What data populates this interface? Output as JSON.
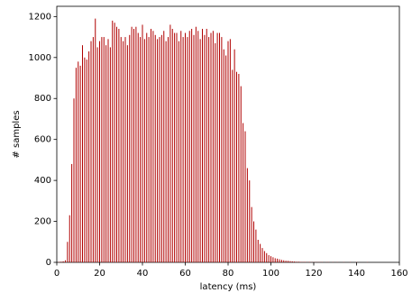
{
  "chart_data": {
    "type": "bar",
    "x_label": "latency (ms)",
    "y_label": "# samples",
    "color": "#b00000",
    "x": [
      1,
      2,
      3,
      4,
      5,
      6,
      7,
      8,
      9,
      10,
      11,
      12,
      13,
      14,
      15,
      16,
      17,
      18,
      19,
      20,
      21,
      22,
      23,
      24,
      25,
      26,
      27,
      28,
      29,
      30,
      31,
      32,
      33,
      34,
      35,
      36,
      37,
      38,
      39,
      40,
      41,
      42,
      43,
      44,
      45,
      46,
      47,
      48,
      49,
      50,
      51,
      52,
      53,
      54,
      55,
      56,
      57,
      58,
      59,
      60,
      61,
      62,
      63,
      64,
      65,
      66,
      67,
      68,
      69,
      70,
      71,
      72,
      73,
      74,
      75,
      76,
      77,
      78,
      79,
      80,
      81,
      82,
      83,
      84,
      85,
      86,
      87,
      88,
      89,
      90,
      91,
      92,
      93,
      94,
      95,
      96,
      97,
      98,
      99,
      100,
      101,
      102,
      103,
      104,
      105,
      106,
      107,
      108,
      109,
      110,
      111,
      112,
      113,
      114,
      115,
      116,
      117,
      118,
      119,
      120,
      121,
      122,
      123,
      124,
      125,
      126,
      127,
      128,
      129,
      130,
      131,
      132,
      133,
      134,
      135,
      136,
      137,
      138,
      139,
      140,
      141,
      142,
      143,
      144,
      145
    ],
    "values": [
      2,
      3,
      5,
      10,
      100,
      230,
      480,
      800,
      950,
      980,
      960,
      1060,
      1000,
      990,
      1030,
      1080,
      1100,
      1190,
      1050,
      1080,
      1100,
      1100,
      1060,
      1090,
      1050,
      1180,
      1170,
      1150,
      1140,
      1100,
      1080,
      1100,
      1060,
      1110,
      1150,
      1140,
      1150,
      1120,
      1100,
      1160,
      1090,
      1120,
      1100,
      1140,
      1130,
      1110,
      1090,
      1100,
      1110,
      1130,
      1080,
      1100,
      1160,
      1140,
      1120,
      1120,
      1080,
      1130,
      1100,
      1120,
      1100,
      1130,
      1140,
      1110,
      1150,
      1130,
      1090,
      1140,
      1110,
      1140,
      1100,
      1120,
      1130,
      1070,
      1120,
      1120,
      1100,
      1040,
      1010,
      1080,
      1090,
      940,
      1040,
      930,
      920,
      860,
      680,
      640,
      460,
      400,
      270,
      200,
      160,
      110,
      90,
      70,
      55,
      45,
      35,
      30,
      25,
      20,
      18,
      15,
      12,
      10,
      8,
      7,
      6,
      5,
      4,
      3,
      3,
      2,
      2,
      2,
      1,
      2,
      1,
      1,
      1,
      1,
      1,
      1,
      0,
      1,
      1,
      0,
      1,
      0,
      1,
      0,
      0,
      1,
      0,
      0,
      1,
      0,
      0,
      1,
      0,
      0,
      0,
      0,
      1
    ],
    "xlim": [
      0,
      160
    ],
    "ylim": [
      0,
      1250
    ],
    "xticks": [
      0,
      20,
      40,
      60,
      80,
      100,
      120,
      140,
      160
    ],
    "yticks": [
      0,
      200,
      400,
      600,
      800,
      1000,
      1200
    ]
  }
}
